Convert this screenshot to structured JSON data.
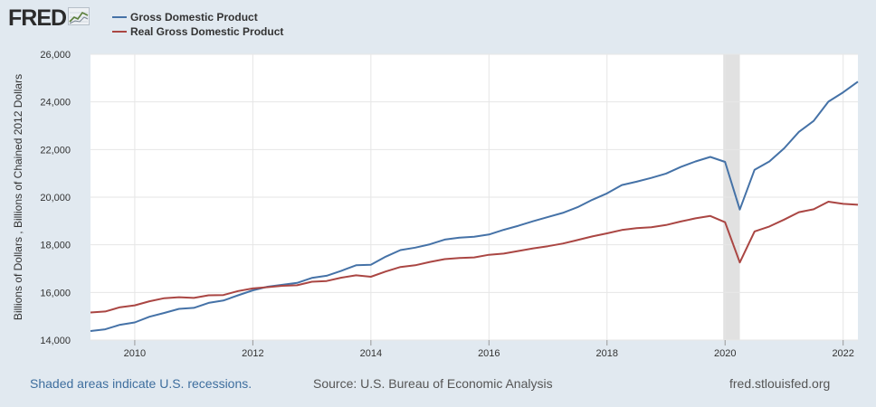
{
  "header": {
    "logo_text": "FRED",
    "logo_icon": "trend-line-icon"
  },
  "legend": {
    "items": [
      {
        "label": "Gross Domestic Product",
        "color": "#4572a7"
      },
      {
        "label": "Real Gross Domestic Product",
        "color": "#aa4643"
      }
    ]
  },
  "footer": {
    "recession_note": "Shaded areas indicate U.S. recessions.",
    "source": "Source: U.S. Bureau of Economic Analysis",
    "site": "fred.stlouisfed.org"
  },
  "colors": {
    "background": "#e1e9f0",
    "plot_bg": "#ffffff",
    "recession_shade": "#e1e1e1",
    "grid": "#e6e6e6"
  },
  "chart_data": {
    "type": "line",
    "ylabel": "Billions of Dollars , Billions of Chained 2012 Dollars",
    "xlabel": "",
    "xlim": [
      2009.25,
      2022.25
    ],
    "ylim": [
      14000,
      26000
    ],
    "x_ticks": [
      2010,
      2012,
      2014,
      2016,
      2018,
      2020,
      2022
    ],
    "y_ticks": [
      14000,
      16000,
      18000,
      20000,
      22000,
      24000,
      26000
    ],
    "y_tick_labels": [
      "14,000",
      "16,000",
      "18,000",
      "20,000",
      "22,000",
      "24,000",
      "26,000"
    ],
    "grid": true,
    "recessions": [
      [
        2020.0,
        2020.25
      ]
    ],
    "x": [
      2009.25,
      2009.5,
      2009.75,
      2010.0,
      2010.25,
      2010.5,
      2010.75,
      2011.0,
      2011.25,
      2011.5,
      2011.75,
      2012.0,
      2012.25,
      2012.5,
      2012.75,
      2013.0,
      2013.25,
      2013.5,
      2013.75,
      2014.0,
      2014.25,
      2014.5,
      2014.75,
      2015.0,
      2015.25,
      2015.5,
      2015.75,
      2016.0,
      2016.25,
      2016.5,
      2016.75,
      2017.0,
      2017.25,
      2017.5,
      2017.75,
      2018.0,
      2018.25,
      2018.5,
      2018.75,
      2019.0,
      2019.25,
      2019.5,
      2019.75,
      2020.0,
      2020.25,
      2020.5,
      2020.75,
      2021.0,
      2021.25,
      2021.5,
      2021.75,
      2022.0,
      2022.25
    ],
    "series": [
      {
        "name": "Gross Domestic Product",
        "color": "#4572a7",
        "values": [
          14380,
          14450,
          14640,
          14740,
          14980,
          15140,
          15310,
          15350,
          15560,
          15660,
          15880,
          16090,
          16240,
          16320,
          16400,
          16610,
          16700,
          16910,
          17140,
          17160,
          17500,
          17780,
          17880,
          18020,
          18220,
          18300,
          18340,
          18430,
          18630,
          18800,
          18990,
          19170,
          19340,
          19580,
          19890,
          20160,
          20510,
          20650,
          20810,
          20990,
          21270,
          21500,
          21690,
          21480,
          19480,
          21150,
          21500,
          22050,
          22740,
          23200,
          24010,
          24400,
          24850
        ]
      },
      {
        "name": "Real Gross Domestic Product",
        "color": "#aa4643",
        "values": [
          15160,
          15200,
          15380,
          15460,
          15630,
          15760,
          15800,
          15770,
          15880,
          15890,
          16060,
          16170,
          16220,
          16280,
          16300,
          16450,
          16480,
          16620,
          16720,
          16660,
          16880,
          17070,
          17140,
          17280,
          17400,
          17450,
          17470,
          17580,
          17630,
          17740,
          17850,
          17940,
          18050,
          18200,
          18350,
          18480,
          18620,
          18700,
          18740,
          18830,
          18980,
          19110,
          19210,
          18950,
          17260,
          18560,
          18770,
          19060,
          19370,
          19490,
          19810,
          19720,
          19680
        ]
      }
    ]
  }
}
